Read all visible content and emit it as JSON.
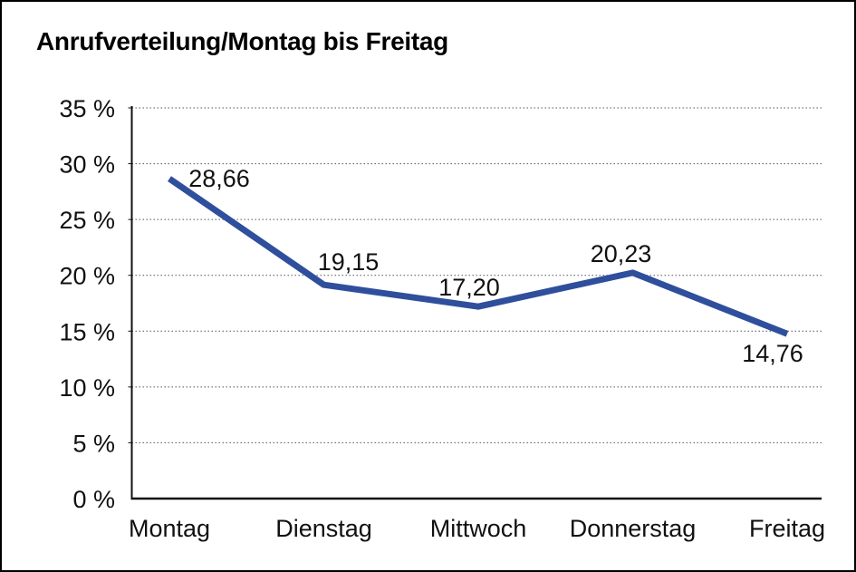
{
  "page": {
    "background": "#ffffff",
    "frame_border_color": "#000000"
  },
  "chart_data": {
    "type": "line",
    "title": "Anrufverteilung/Montag bis Freitag",
    "categories": [
      "Montag",
      "Dienstag",
      "Mittwoch",
      "Donnerstag",
      "Freitag"
    ],
    "values": [
      28.66,
      19.15,
      17.2,
      20.23,
      14.76
    ],
    "value_labels": [
      "28,66",
      "19,15",
      "17,20",
      "20,23",
      "14,76"
    ],
    "y_tick_labels": [
      "35 %",
      "30 %",
      "25 %",
      "20 %",
      "15 %",
      "10 %",
      "5 %",
      "0 %"
    ],
    "ylim": [
      0,
      35
    ],
    "y_step": 5,
    "xlabel": "",
    "ylabel": "",
    "legend": "none",
    "grid": "horizontal-dotted",
    "line_color": "#2F4F9D",
    "axis_color": "#111111",
    "gridline_color": "#555555",
    "label_color": "#111111"
  }
}
